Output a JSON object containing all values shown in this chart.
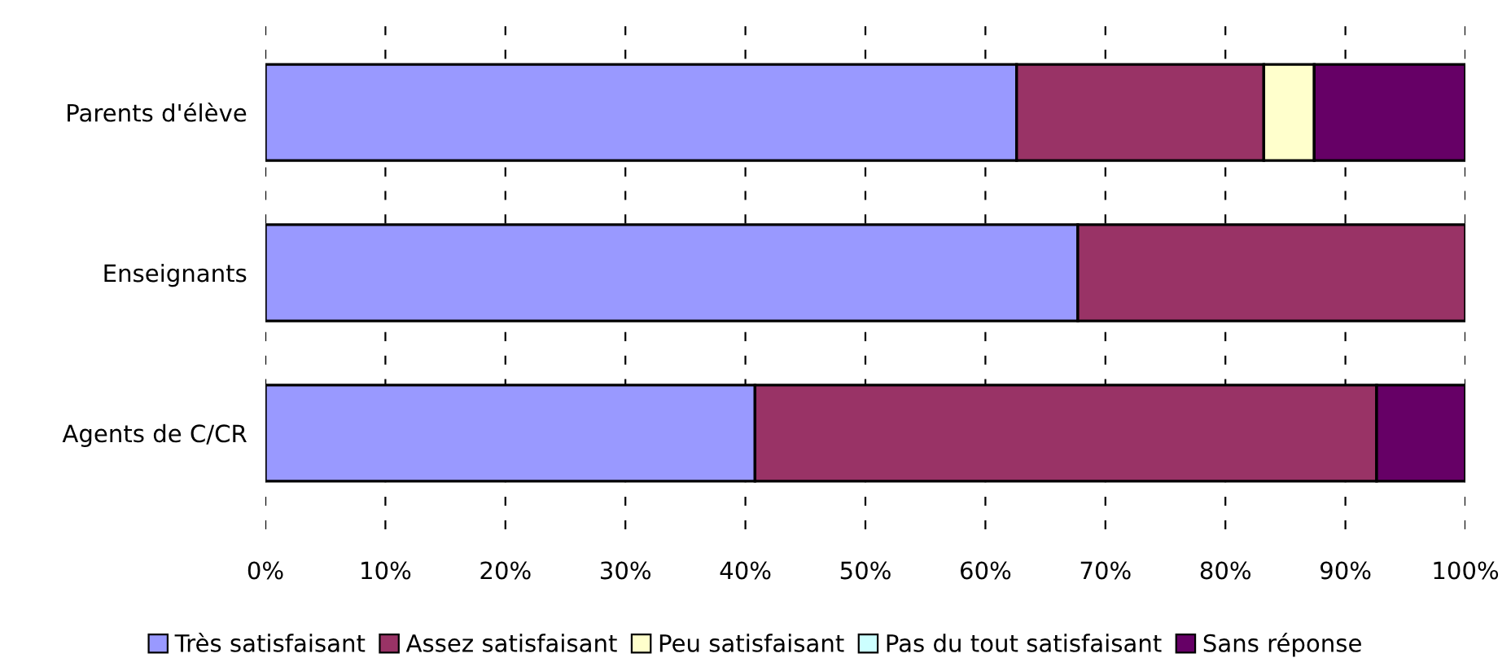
{
  "chart_data": {
    "type": "bar",
    "orientation": "horizontal",
    "stacked": true,
    "categories": [
      "Parents d'élève",
      "Enseignants",
      "Agents de C/CR"
    ],
    "series": [
      {
        "name": "Très satisfaisant",
        "color": "#9999ff",
        "values": [
          62.6,
          67.7,
          40.8
        ]
      },
      {
        "name": "Assez satisfaisant",
        "color": "#993366",
        "values": [
          20.6,
          32.3,
          51.8
        ]
      },
      {
        "name": "Peu satisfaisant",
        "color": "#ffffcc",
        "values": [
          4.2,
          0,
          0
        ]
      },
      {
        "name": "Pas du tout satisfaisant",
        "color": "#ccffff",
        "values": [
          0,
          0,
          0
        ]
      },
      {
        "name": "Sans réponse",
        "color": "#660066",
        "values": [
          12.6,
          0,
          7.4
        ]
      }
    ],
    "xlim": [
      0,
      100
    ],
    "xticks": [
      {
        "value": 0,
        "label": "0%"
      },
      {
        "value": 10,
        "label": "10%"
      },
      {
        "value": 20,
        "label": "20%"
      },
      {
        "value": 30,
        "label": "30%"
      },
      {
        "value": 40,
        "label": "40%"
      },
      {
        "value": 50,
        "label": "50%"
      },
      {
        "value": 60,
        "label": "60%"
      },
      {
        "value": 70,
        "label": "70%"
      },
      {
        "value": 80,
        "label": "80%"
      },
      {
        "value": 90,
        "label": "90%"
      },
      {
        "value": 100,
        "label": "100%"
      }
    ],
    "grid": "x",
    "legend": "bottom"
  }
}
